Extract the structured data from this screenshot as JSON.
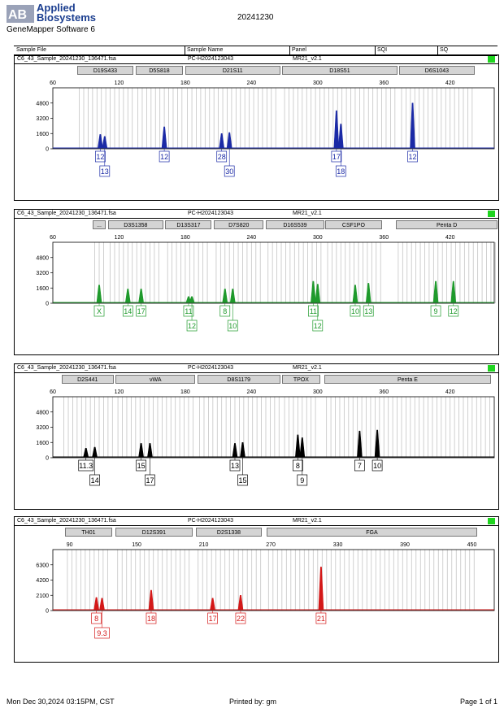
{
  "header": {
    "logo_line1": "Applied",
    "logo_line2": "Biosystems",
    "app_name": "GeneMapper Software 6",
    "date_title": "20241230"
  },
  "columns": {
    "sample_file": "Sample File",
    "sample_name": "Sample Name",
    "panel": "Panel",
    "sqi": "SQI",
    "sq": "SQ"
  },
  "colors": {
    "blue": "#1b2aa6",
    "green": "#1f9a2c",
    "black": "#000000",
    "red": "#d41818",
    "sq_ok": "#1fd51f"
  },
  "chart_data": [
    {
      "type": "line",
      "dye": "blue",
      "sample_file": "C6_43_Sample_20241230_136471.fsa",
      "sample_name": "PC-H2024123043",
      "panel": "MR21_v2.1",
      "xlim": [
        60,
        460
      ],
      "x_ticks": [
        60,
        120,
        180,
        240,
        300,
        360,
        420
      ],
      "ylim": [
        0,
        6400
      ],
      "y_ticks": [
        0,
        1600,
        3200,
        4800
      ],
      "markers": [
        {
          "name": "D19S433",
          "x0": 82,
          "x1": 133
        },
        {
          "name": "D5S818",
          "x0": 135,
          "x1": 178
        },
        {
          "name": "D21S11",
          "x0": 180,
          "x1": 266
        },
        {
          "name": "D18S51",
          "x0": 268,
          "x1": 372
        },
        {
          "name": "D6S1043",
          "x0": 374,
          "x1": 442
        }
      ],
      "peaks": [
        {
          "x": 103,
          "h": 1500,
          "allele": "12",
          "row": 1
        },
        {
          "x": 107,
          "h": 1300,
          "allele": "13",
          "row": 2
        },
        {
          "x": 161,
          "h": 2300,
          "allele": "12",
          "row": 1
        },
        {
          "x": 213,
          "h": 1600,
          "allele": "28",
          "row": 1
        },
        {
          "x": 220,
          "h": 1700,
          "allele": "30",
          "row": 2
        },
        {
          "x": 317,
          "h": 4000,
          "allele": "17",
          "row": 1
        },
        {
          "x": 321,
          "h": 2600,
          "allele": "18",
          "row": 2
        },
        {
          "x": 386,
          "h": 4800,
          "allele": "12",
          "row": 1
        }
      ]
    },
    {
      "type": "line",
      "dye": "green",
      "sample_file": "C6_43_Sample_20241230_136471.fsa",
      "sample_name": "PC-H2024123043",
      "panel": "MR21_v2.1",
      "xlim": [
        60,
        460
      ],
      "x_ticks": [
        60,
        120,
        180,
        240,
        300,
        360,
        420
      ],
      "ylim": [
        0,
        6400
      ],
      "y_ticks": [
        0,
        1600,
        3200,
        4800
      ],
      "markers": [
        {
          "name": "...",
          "x0": 96,
          "x1": 108
        },
        {
          "name": "D3S1358",
          "x0": 110,
          "x1": 160
        },
        {
          "name": "D13S317",
          "x0": 162,
          "x1": 204
        },
        {
          "name": "D7S820",
          "x0": 206,
          "x1": 251
        },
        {
          "name": "D16S539",
          "x0": 253,
          "x1": 306
        },
        {
          "name": "CSF1PO",
          "x0": 307,
          "x1": 358
        },
        {
          "name": "Penta D",
          "x0": 371,
          "x1": 463
        }
      ],
      "peaks": [
        {
          "x": 102,
          "h": 1900,
          "allele": "X",
          "row": 1
        },
        {
          "x": 128,
          "h": 1500,
          "allele": "14",
          "row": 1
        },
        {
          "x": 140,
          "h": 1500,
          "allele": "17",
          "row": 1
        },
        {
          "x": 183,
          "h": 700,
          "allele": "11",
          "row": 1
        },
        {
          "x": 186,
          "h": 700,
          "allele": "12",
          "row": 2
        },
        {
          "x": 216,
          "h": 1500,
          "allele": "8",
          "row": 1
        },
        {
          "x": 223,
          "h": 1500,
          "allele": "10",
          "row": 2
        },
        {
          "x": 296,
          "h": 2300,
          "allele": "11",
          "row": 1
        },
        {
          "x": 300,
          "h": 2000,
          "allele": "12",
          "row": 2
        },
        {
          "x": 334,
          "h": 1900,
          "allele": "10",
          "row": 1
        },
        {
          "x": 346,
          "h": 2100,
          "allele": "13",
          "row": 1
        },
        {
          "x": 407,
          "h": 2300,
          "allele": "9",
          "row": 1
        },
        {
          "x": 423,
          "h": 2300,
          "allele": "12",
          "row": 1
        }
      ]
    },
    {
      "type": "line",
      "dye": "black",
      "sample_file": "C6_43_Sample_20241230_136471.fsa",
      "sample_name": "PC-H2024123043",
      "panel": "MR21_v2.1",
      "xlim": [
        60,
        460
      ],
      "x_ticks": [
        60,
        120,
        180,
        240,
        300,
        360,
        420
      ],
      "ylim": [
        0,
        6400
      ],
      "y_ticks": [
        0,
        1600,
        3200,
        4800
      ],
      "markers": [
        {
          "name": "D2S441",
          "x0": 68,
          "x1": 115
        },
        {
          "name": "vWA",
          "x0": 117,
          "x1": 189
        },
        {
          "name": "D8S1179",
          "x0": 191,
          "x1": 266
        },
        {
          "name": "TPOX",
          "x0": 268,
          "x1": 302
        },
        {
          "name": "Penta E",
          "x0": 306,
          "x1": 457
        }
      ],
      "peaks": [
        {
          "x": 90,
          "h": 1000,
          "allele": "11.3",
          "row": 1
        },
        {
          "x": 98,
          "h": 1100,
          "allele": "14",
          "row": 2
        },
        {
          "x": 140,
          "h": 1500,
          "allele": "15",
          "row": 1
        },
        {
          "x": 148,
          "h": 1500,
          "allele": "17",
          "row": 2
        },
        {
          "x": 225,
          "h": 1500,
          "allele": "13",
          "row": 1
        },
        {
          "x": 232,
          "h": 1600,
          "allele": "15",
          "row": 2
        },
        {
          "x": 282,
          "h": 2400,
          "allele": "8",
          "row": 1
        },
        {
          "x": 286,
          "h": 2100,
          "allele": "9",
          "row": 2
        },
        {
          "x": 338,
          "h": 2800,
          "allele": "7",
          "row": 1
        },
        {
          "x": 354,
          "h": 2900,
          "allele": "10",
          "row": 1
        }
      ]
    },
    {
      "type": "line",
      "dye": "red",
      "sample_file": "C6_43_Sample_20241230_136471.fsa",
      "sample_name": "PC-H2024123043",
      "panel": "MR21_v2.1",
      "xlim": [
        75,
        470
      ],
      "x_ticks": [
        90,
        150,
        210,
        270,
        330,
        390,
        450
      ],
      "ylim": [
        0,
        8400
      ],
      "y_ticks": [
        0,
        2100,
        4200,
        6300
      ],
      "markers": [
        {
          "name": "TH01",
          "x0": 86,
          "x1": 128
        },
        {
          "name": "D12S391",
          "x0": 131,
          "x1": 200
        },
        {
          "name": "D2S1338",
          "x0": 203,
          "x1": 262
        },
        {
          "name": "FGA",
          "x0": 266,
          "x1": 455
        }
      ],
      "peaks": [
        {
          "x": 114,
          "h": 1800,
          "allele": "8",
          "row": 1
        },
        {
          "x": 119,
          "h": 1700,
          "allele": "9.3",
          "row": 2
        },
        {
          "x": 163,
          "h": 2800,
          "allele": "18",
          "row": 1
        },
        {
          "x": 218,
          "h": 1700,
          "allele": "17",
          "row": 1
        },
        {
          "x": 243,
          "h": 2100,
          "allele": "22",
          "row": 1
        },
        {
          "x": 315,
          "h": 6000,
          "allele": "21",
          "row": 1
        }
      ]
    }
  ],
  "footer": {
    "printed_on": "Mon Dec 30,2024 03:15PM, CST",
    "printed_by": "Printed by: gm",
    "page": "Page 1 of 1"
  }
}
